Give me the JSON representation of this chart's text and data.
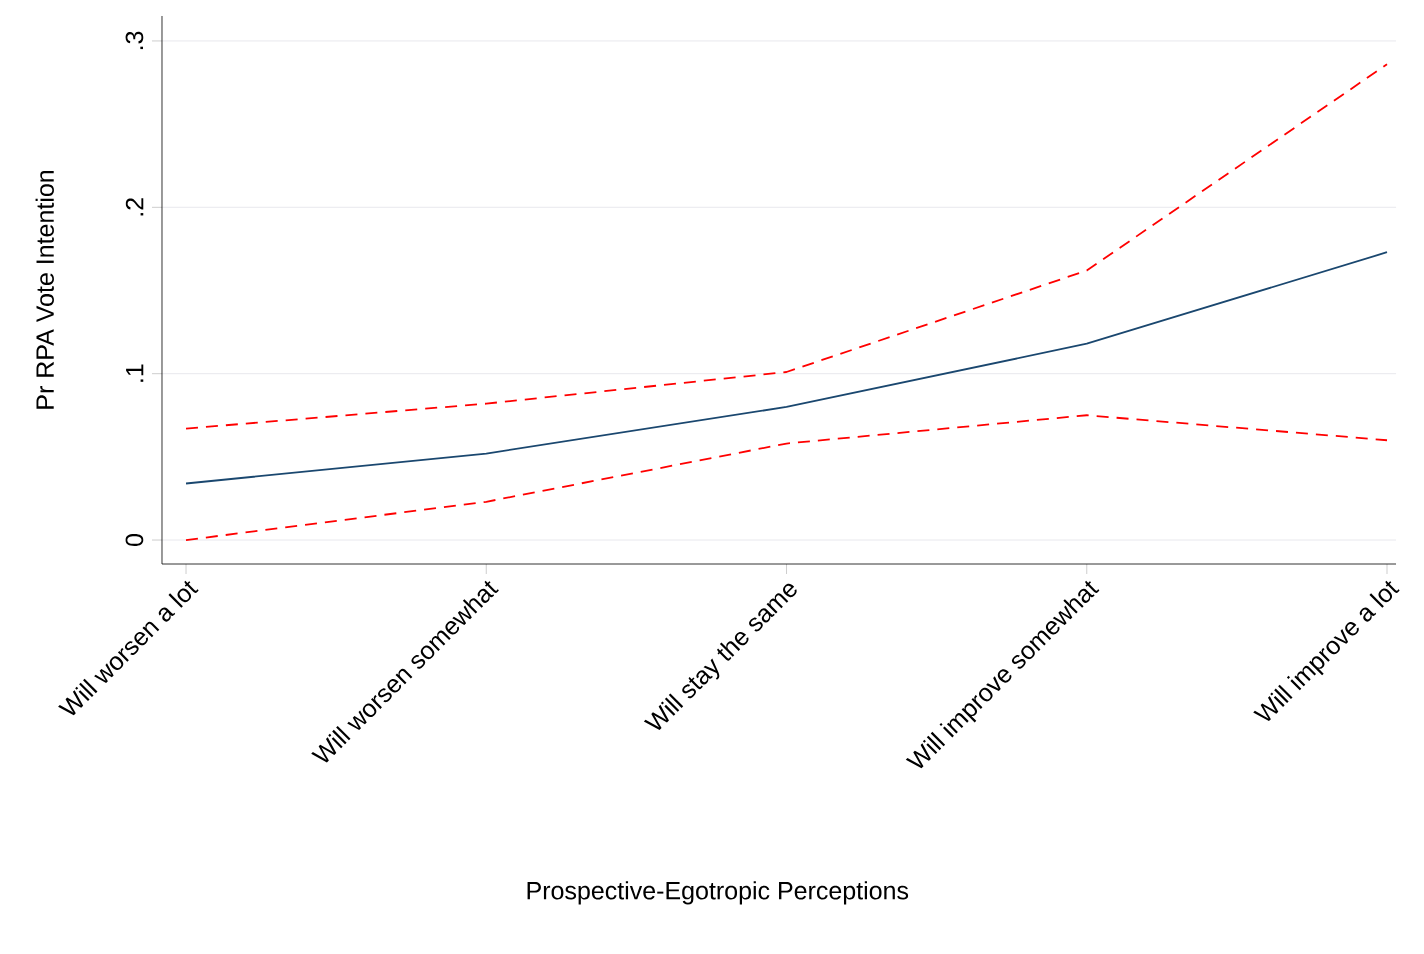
{
  "chart_data": {
    "type": "line",
    "xlabel": "Prospective-Egotropic Perceptions",
    "ylabel": "Pr RPA Vote Intention",
    "categories": [
      "Will worsen a lot",
      "Will worsen somewhat",
      "Will stay the same",
      "Will improve somewhat",
      "Will improve a lot"
    ],
    "series": [
      {
        "color": "#1a476f",
        "line_style": "solid",
        "values": [
          0.034,
          0.052,
          0.08,
          0.118,
          0.173
        ]
      },
      {
        "color": "#ff0000",
        "line_style": "dashed",
        "values": [
          0.067,
          0.082,
          0.101,
          0.162,
          0.286
        ]
      },
      {
        "color": "#ff0000",
        "line_style": "dashed",
        "values": [
          0.0,
          0.023,
          0.058,
          0.075,
          0.06
        ]
      }
    ],
    "ylim": [
      -0.0144,
      0.315
    ],
    "yticks": [
      {
        "value": 0,
        "label": "0"
      },
      {
        "value": 0.1,
        "label": ".1"
      },
      {
        "value": 0.2,
        "label": ".2"
      },
      {
        "value": 0.3,
        "label": ".3"
      }
    ],
    "grid": "y",
    "marker": "none"
  }
}
